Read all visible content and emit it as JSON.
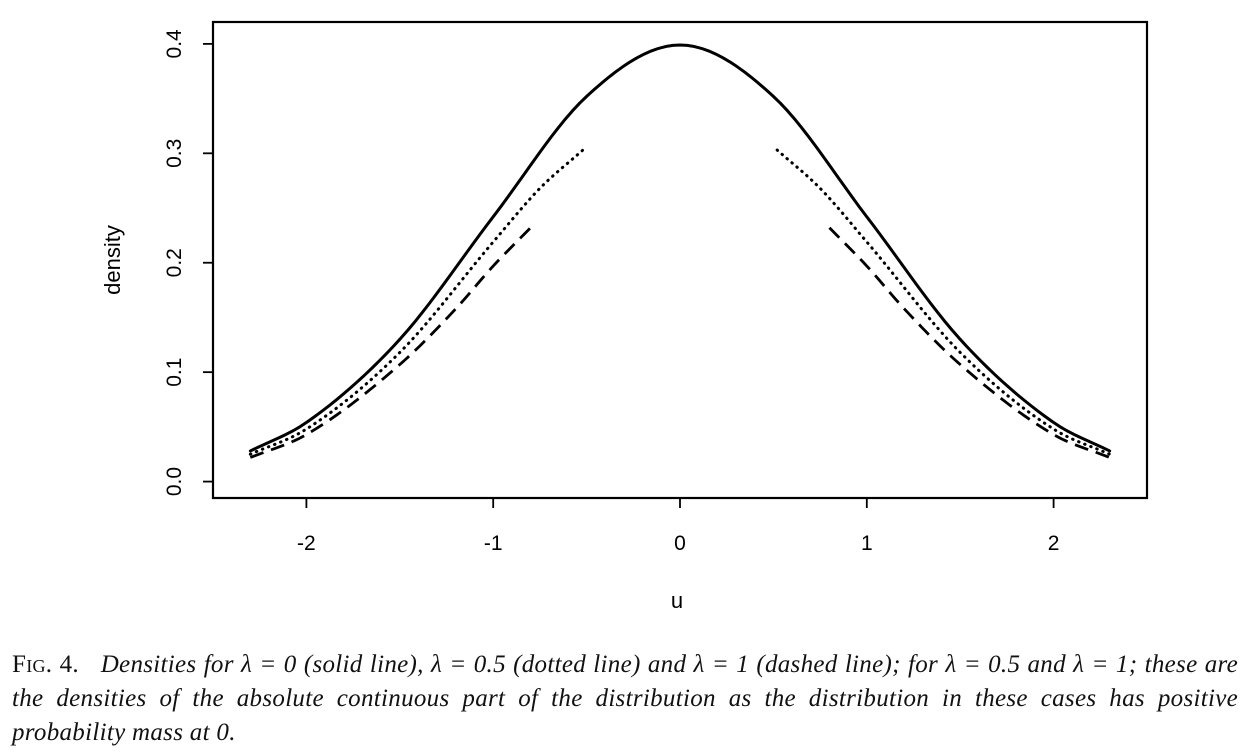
{
  "chart_data": {
    "type": "line",
    "xlabel": "u",
    "ylabel": "density",
    "xlim": [
      -2.5,
      2.5
    ],
    "ylim": [
      -0.015,
      0.42
    ],
    "xticks": [
      -2,
      -1,
      0,
      1,
      2
    ],
    "xtick_labels": [
      "-2",
      "-1",
      "0",
      "1",
      "2"
    ],
    "yticks": [
      0.0,
      0.1,
      0.2,
      0.3,
      0.4
    ],
    "ytick_labels": [
      "0.0",
      "0.1",
      "0.2",
      "0.3",
      "0.4"
    ],
    "grid": false,
    "series": [
      {
        "style": "solid",
        "x": [
          -2.3,
          -2.0,
          -1.5,
          -1.0,
          -0.5,
          0.0,
          0.5,
          1.0,
          1.5,
          2.0,
          2.3
        ],
        "y": [
          0.028,
          0.054,
          0.13,
          0.242,
          0.352,
          0.399,
          0.352,
          0.242,
          0.13,
          0.054,
          0.028
        ]
      },
      {
        "style": "dotted",
        "segments": [
          {
            "x": [
              -2.3,
              -2.0,
              -1.5,
              -1.0,
              -0.75,
              -0.52
            ],
            "y": [
              0.025,
              0.048,
              0.118,
              0.219,
              0.268,
              0.303
            ]
          },
          {
            "x": [
              0.52,
              0.75,
              1.0,
              1.5,
              2.0,
              2.3
            ],
            "y": [
              0.303,
              0.268,
              0.219,
              0.118,
              0.048,
              0.025
            ]
          }
        ]
      },
      {
        "style": "dashed",
        "segments": [
          {
            "x": [
              -2.3,
              -2.0,
              -1.5,
              -1.2,
              -1.0,
              -0.8
            ],
            "y": [
              0.022,
              0.043,
              0.107,
              0.158,
              0.197,
              0.232
            ]
          },
          {
            "x": [
              0.8,
              1.0,
              1.2,
              1.5,
              2.0,
              2.3
            ],
            "y": [
              0.232,
              0.197,
              0.158,
              0.107,
              0.043,
              0.022
            ]
          }
        ]
      }
    ]
  },
  "caption": {
    "label": "Fig. 4.",
    "text": "Densities for λ = 0 (solid line), λ = 0.5 (dotted line) and λ = 1 (dashed line); for λ = 0.5 and λ = 1; these are the densities of the absolute continuous part of the distribution as the distribution in these cases has positive probability mass at 0."
  }
}
